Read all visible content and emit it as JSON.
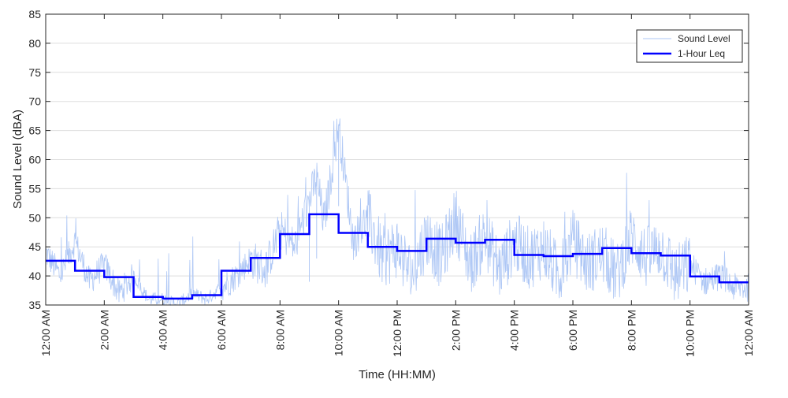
{
  "chart_data": {
    "type": "line",
    "title": "",
    "xlabel": "Time (HH:MM)",
    "ylabel": "Sound Level (dBA)",
    "ylim": [
      35,
      85
    ],
    "yticks": [
      35,
      40,
      45,
      50,
      55,
      60,
      65,
      70,
      75,
      80,
      85
    ],
    "xlim_hours": [
      0,
      24
    ],
    "xticks": [
      "12:00 AM",
      "2:00 AM",
      "4:00 AM",
      "6:00 AM",
      "8:00 AM",
      "10:00 AM",
      "12:00 PM",
      "2:00 PM",
      "4:00 PM",
      "6:00 PM",
      "8:00 PM",
      "10:00 PM",
      "12:00 AM"
    ],
    "grid": "horizontal",
    "legend_position": "top-right",
    "colors": {
      "sound_level": "#aec7f5",
      "leq": "#0000ff",
      "axis": "#262626",
      "grid": "#dedede"
    },
    "series": [
      {
        "name": "Sound Level",
        "style": "thin",
        "x": [
          "12:00 AM",
          "12:30 AM",
          "1:00 AM",
          "1:30 AM",
          "2:00 AM",
          "2:30 AM",
          "3:00 AM",
          "3:30 AM",
          "4:00 AM",
          "4:30 AM",
          "5:00 AM",
          "5:30 AM",
          "6:00 AM",
          "6:30 AM",
          "7:00 AM",
          "7:30 AM",
          "8:00 AM",
          "8:30 AM",
          "9:00 AM",
          "9:15 AM",
          "9:30 AM",
          "10:00 AM",
          "10:30 AM",
          "11:00 AM",
          "11:30 AM",
          "12:00 PM",
          "12:30 PM",
          "1:00 PM",
          "1:30 PM",
          "2:00 PM",
          "2:30 PM",
          "3:00 PM",
          "3:30 PM",
          "4:00 PM",
          "4:30 PM",
          "5:00 PM",
          "5:30 PM",
          "6:00 PM",
          "6:30 PM",
          "7:00 PM",
          "7:30 PM",
          "8:00 PM",
          "8:30 PM",
          "9:00 PM",
          "9:30 PM",
          "10:00 PM",
          "10:30 PM",
          "11:00 PM",
          "11:30 PM"
        ],
        "values": [
          44,
          40,
          46,
          39,
          42,
          37,
          40,
          36,
          36,
          35,
          37,
          36,
          38,
          40,
          43,
          41,
          48,
          45,
          53,
          57,
          49,
          66,
          46,
          50,
          43,
          45,
          40,
          47,
          43,
          50,
          42,
          47,
          41,
          46,
          43,
          45,
          40,
          46,
          42,
          44,
          40,
          47,
          43,
          45,
          40,
          42,
          39,
          40,
          38
        ]
      },
      {
        "name": "1-Hour Leq",
        "style": "step",
        "x": [
          "12:00 AM",
          "1:00 AM",
          "2:00 AM",
          "3:00 AM",
          "4:00 AM",
          "5:00 AM",
          "6:00 AM",
          "7:00 AM",
          "8:00 AM",
          "9:00 AM",
          "10:00 AM",
          "11:00 AM",
          "12:00 PM",
          "1:00 PM",
          "2:00 PM",
          "3:00 PM",
          "4:00 PM",
          "5:00 PM",
          "6:00 PM",
          "7:00 PM",
          "8:00 PM",
          "9:00 PM",
          "10:00 PM",
          "11:00 PM"
        ],
        "values": [
          42.6,
          40.9,
          39.8,
          36.4,
          36.1,
          36.7,
          40.9,
          43.1,
          47.2,
          50.6,
          47.4,
          45.0,
          44.3,
          46.4,
          45.7,
          46.2,
          43.6,
          43.4,
          43.8,
          44.8,
          43.9,
          43.5,
          39.9,
          38.9
        ]
      }
    ]
  }
}
